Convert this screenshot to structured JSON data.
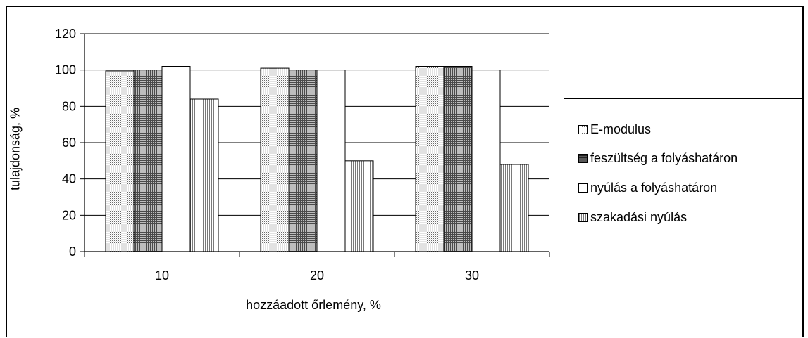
{
  "chart_data": {
    "type": "bar",
    "title": "",
    "xlabel": "hozzáadott őrlemény, %",
    "ylabel": "tulajdonság, %",
    "ylim": [
      0,
      120
    ],
    "yticks": [
      0,
      20,
      40,
      60,
      80,
      100,
      120
    ],
    "categories": [
      "10",
      "20",
      "30"
    ],
    "series": [
      {
        "name": "E-modulus",
        "values": [
          99.5,
          101,
          102
        ],
        "color": "#c8c8c8",
        "pattern": "dots"
      },
      {
        "name": "feszültség a folyáshatáron",
        "values": [
          100,
          100,
          102
        ],
        "color": "#808080",
        "pattern": "crosshatch"
      },
      {
        "name": "nyúlás a folyáshatáron",
        "values": [
          102,
          100,
          100
        ],
        "color": "#ffffff",
        "pattern": "none"
      },
      {
        "name": "szakadási nyúlás",
        "values": [
          84,
          50,
          48
        ],
        "color": "#d8d8d8",
        "pattern": "vertical"
      }
    ],
    "grid": true,
    "legend_position": "right"
  }
}
